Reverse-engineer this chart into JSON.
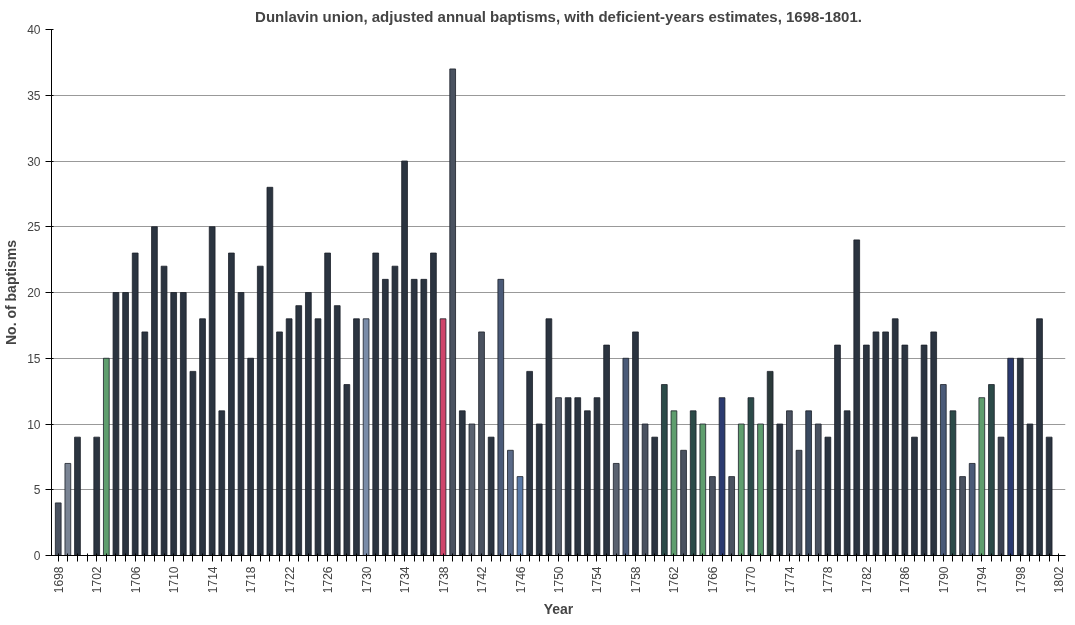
{
  "chart_data": {
    "type": "bar",
    "title": "Dunlavin union, adjusted annual baptisms, with deficient-years estimates, 1698-1801.",
    "xlabel": "Year",
    "ylabel": "No. of baptisms",
    "categories": [
      "1698",
      null,
      null,
      null,
      "1702",
      null,
      null,
      null,
      "1706",
      null,
      null,
      null,
      "1710",
      null,
      null,
      null,
      "1714",
      null,
      null,
      null,
      "1718",
      null,
      null,
      null,
      "1722",
      null,
      null,
      null,
      "1726",
      null,
      null,
      null,
      "1730",
      null,
      null,
      null,
      "1734",
      null,
      null,
      null,
      "1738",
      null,
      null,
      null,
      "1742",
      null,
      null,
      null,
      "1746",
      null,
      null,
      null,
      "1750",
      null,
      null,
      null,
      "1754",
      null,
      null,
      null,
      "1758",
      null,
      null,
      null,
      "1762",
      null,
      null,
      null,
      "1766",
      null,
      null,
      null,
      "1770",
      null,
      null,
      null,
      "1774",
      null,
      null,
      null,
      "1778",
      null,
      null,
      null,
      "1782",
      null,
      null,
      null,
      "1786",
      null,
      null,
      null,
      "1790",
      null,
      null,
      null,
      "1794",
      null,
      null,
      null,
      "1798",
      null,
      null,
      null,
      "1802"
    ],
    "values": [
      4,
      7,
      9,
      null,
      9,
      15,
      20,
      20,
      23,
      17,
      25,
      22,
      20,
      20,
      14,
      18,
      25,
      11,
      23,
      20,
      15,
      22,
      28,
      17,
      18,
      19,
      20,
      18,
      23,
      19,
      13,
      18,
      18,
      23,
      21,
      22,
      30,
      21,
      21,
      23,
      18,
      37,
      11,
      10,
      17,
      9,
      21,
      8,
      6,
      14,
      10,
      18,
      12,
      12,
      12,
      11,
      12,
      16,
      7,
      15,
      17,
      10,
      9,
      13,
      11,
      8,
      11,
      10,
      6,
      12,
      6,
      10,
      12,
      10,
      14,
      10,
      11,
      8,
      11,
      10,
      9,
      16,
      11,
      24,
      16,
      17,
      17,
      18,
      16,
      9,
      16,
      17,
      13,
      11,
      6,
      7,
      12,
      13,
      9,
      15,
      15,
      10,
      18,
      9,
      null
    ],
    "colors": [
      "#4a5260",
      "#7a8494",
      "#2b3440",
      "#2b3440",
      "#2b3440",
      "#5f9e6e",
      "#2b3440",
      "#2b3440",
      "#2b3440",
      "#2b3440",
      "#2b3440",
      "#2b3440",
      "#2b3440",
      "#2b3440",
      "#2b3440",
      "#2b3440",
      "#2b3440",
      "#2b3440",
      "#2b3440",
      "#2b3440",
      "#2b3440",
      "#2b3440",
      "#2b3440",
      "#2b3440",
      "#2b3440",
      "#2b3440",
      "#2b3440",
      "#2b3440",
      "#2b3440",
      "#2b3440",
      "#2b3440",
      "#2b3440",
      "#7a8ca8",
      "#2b3440",
      "#2b3440",
      "#2b3440",
      "#2b3440",
      "#2b3440",
      "#2b3440",
      "#2b3440",
      "#d0456a",
      "#4a5260",
      "#2b3440",
      "#5a6270",
      "#4a5260",
      "#2b3440",
      "#4a5a78",
      "#5a6a88",
      "#5a7aa8",
      "#2b3440",
      "#2b3440",
      "#2b3440",
      "#5a6270",
      "#2b3440",
      "#2b3440",
      "#2b3440",
      "#2b3440",
      "#2b3440",
      "#5a6270",
      "#4a5a78",
      "#2b3440",
      "#4a5260",
      "#2b3440",
      "#2b4a48",
      "#5f9e6e",
      "#4a5260",
      "#2b4a48",
      "#5f9e6e",
      "#4a5260",
      "#2b3a70",
      "#4a5260",
      "#5f9e6e",
      "#2b4a48",
      "#5f9e6e",
      "#2b3a3a",
      "#2b3440",
      "#4a5260",
      "#4a5260",
      "#3a4a60",
      "#4a5260",
      "#2b3440",
      "#2b3440",
      "#2b3440",
      "#2b3440",
      "#2b3440",
      "#2b3440",
      "#2b3440",
      "#2b3440",
      "#2b3440",
      "#2b3440",
      "#2b3440",
      "#2b3440",
      "#4a5a78",
      "#2b4a48",
      "#4a5260",
      "#4a5a78",
      "#5f9e6e",
      "#2b4a48",
      "#3a4050",
      "#2b3a70",
      "#2b3440",
      "#2b3440",
      "#2b3440",
      "#2b3440",
      "#2b3440"
    ],
    "ylim": [
      0,
      40
    ],
    "yticks": [
      0,
      5,
      10,
      15,
      20,
      25,
      30,
      35,
      40
    ],
    "grid": "y"
  }
}
